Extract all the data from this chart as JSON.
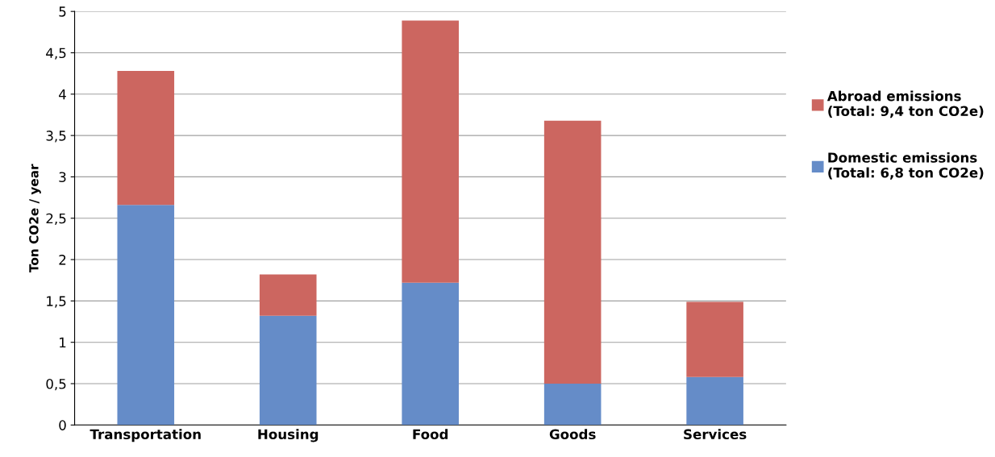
{
  "chart_data": {
    "type": "bar",
    "stacked": true,
    "ylabel": "Ton CO2e / year",
    "categories": [
      "Transportation",
      "Housing",
      "Food",
      "Goods",
      "Services"
    ],
    "series": [
      {
        "name": "Domestic emissions\n(Total: 6,8 ton CO2e)",
        "color": "#658cc8",
        "values": [
          2.66,
          1.32,
          1.72,
          0.5,
          0.58
        ]
      },
      {
        "name": "Abroad emissions\n(Total: 9,4 ton CO2e)",
        "color": "#cc6660",
        "values": [
          1.62,
          0.5,
          3.17,
          3.18,
          0.91
        ]
      }
    ],
    "ylim": [
      0,
      5
    ],
    "yticks": [
      0,
      {
        "value": 0.5,
        "label": "0,5"
      },
      1,
      {
        "value": 1.5,
        "label": "1,5"
      },
      2,
      {
        "value": 2.5,
        "label": "2,5"
      },
      3,
      {
        "value": 3.5,
        "label": "3,5"
      },
      4,
      {
        "value": 4.5,
        "label": "4,5"
      },
      5
    ],
    "grid": "y",
    "legend": "right"
  }
}
